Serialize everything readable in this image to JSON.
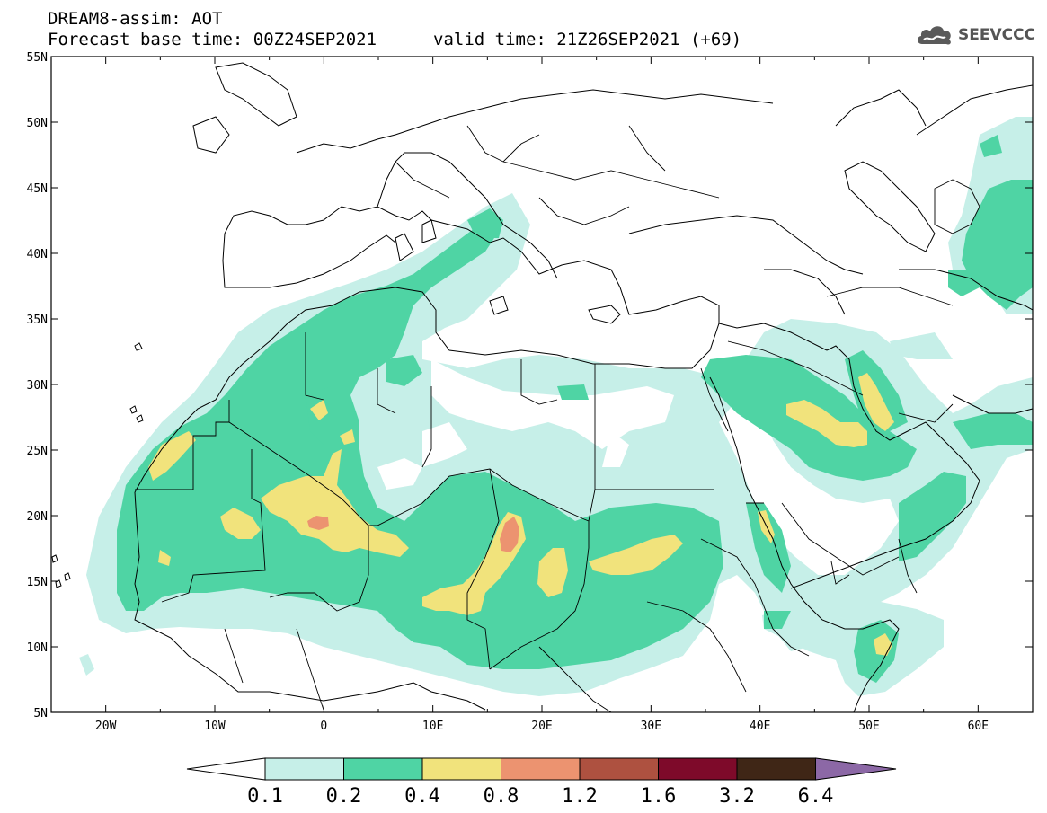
{
  "header": {
    "line1": "DREAM8-assim: AOT",
    "line2": "Forecast base time: 00Z24SEP2021",
    "line3": "valid time: 21Z26SEP2021 (+69)"
  },
  "logo": {
    "text": "SEEVCCC",
    "icon": "cloud-icon"
  },
  "map": {
    "lon_range": [
      -25,
      65
    ],
    "lat_range": [
      5,
      55
    ],
    "lon_ticks": [
      {
        "v": -20,
        "label": "20W"
      },
      {
        "v": -10,
        "label": "10W"
      },
      {
        "v": 0,
        "label": "0"
      },
      {
        "v": 10,
        "label": "10E"
      },
      {
        "v": 20,
        "label": "20E"
      },
      {
        "v": 30,
        "label": "30E"
      },
      {
        "v": 40,
        "label": "40E"
      },
      {
        "v": 50,
        "label": "50E"
      },
      {
        "v": 60,
        "label": "60E"
      }
    ],
    "lat_ticks": [
      {
        "v": 55,
        "label": "55N"
      },
      {
        "v": 50,
        "label": "50N"
      },
      {
        "v": 45,
        "label": "45N"
      },
      {
        "v": 40,
        "label": "40N"
      },
      {
        "v": 35,
        "label": "35N"
      },
      {
        "v": 30,
        "label": "30N"
      },
      {
        "v": 25,
        "label": "25N"
      },
      {
        "v": 20,
        "label": "20N"
      },
      {
        "v": 15,
        "label": "15N"
      },
      {
        "v": 10,
        "label": "10N"
      },
      {
        "v": 5,
        "label": "5N"
      }
    ]
  },
  "colorbar": {
    "colors": [
      "#c6efe8",
      "#4fd4a4",
      "#f1e37c",
      "#ec9370",
      "#ae5140",
      "#7e0a2a",
      "#3f2616",
      "#8c68a6"
    ],
    "under_color": "#ffffff",
    "labels": [
      "0.1",
      "0.2",
      "0.4",
      "0.8",
      "1.2",
      "1.6",
      "3.2",
      "6.4"
    ]
  }
}
